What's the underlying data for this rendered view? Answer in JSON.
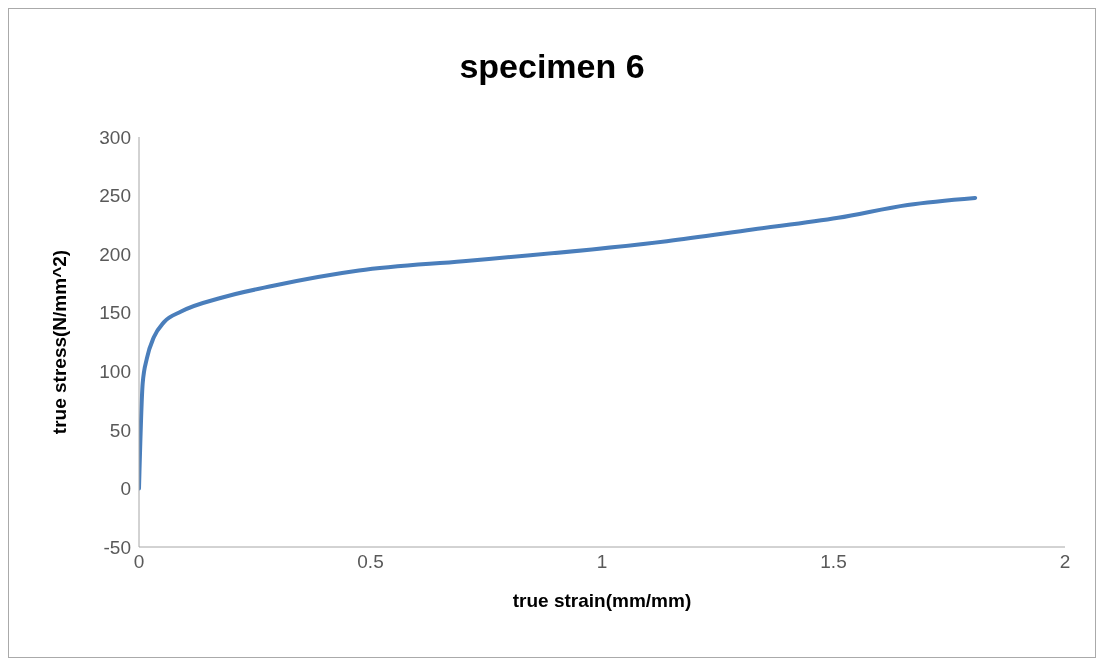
{
  "chart_data": {
    "type": "line",
    "title": "specimen 6",
    "xlabel": "true strain(mm/mm)",
    "ylabel": "true stress(N/mm^2)",
    "xlim": [
      0,
      2
    ],
    "xticks": [
      0,
      0.5,
      1,
      1.5,
      2
    ],
    "ylim": [
      -50,
      300
    ],
    "yticks": [
      -50,
      0,
      50,
      100,
      150,
      200,
      250,
      300
    ],
    "grid": false,
    "legend": false,
    "marker": "none",
    "line_style": "solid",
    "series": [
      {
        "color": "#4a7ebb",
        "x": [
          0,
          0.008,
          0.017,
          0.032,
          0.054,
          0.091,
          0.18,
          0.29,
          0.475,
          0.7,
          0.845,
          1.14,
          1.325,
          1.51,
          1.66,
          1.806
        ],
        "values": [
          0,
          90,
          111,
          129,
          142,
          151,
          163,
          173,
          186,
          194,
          199,
          211,
          221,
          231,
          242,
          248
        ]
      }
    ]
  }
}
